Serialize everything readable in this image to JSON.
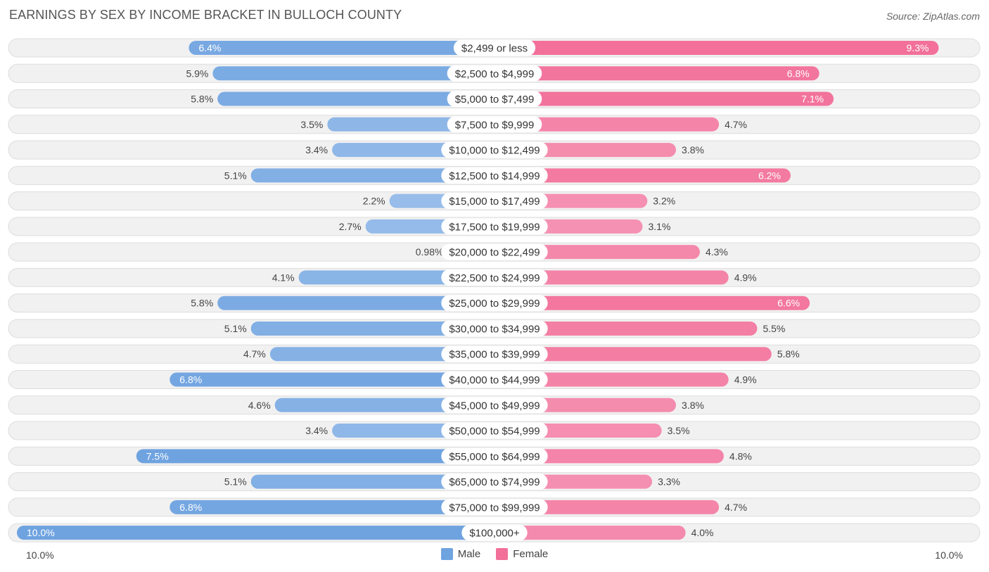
{
  "title": "EARNINGS BY SEX BY INCOME BRACKET IN BULLOCH COUNTY",
  "source": "Source: ZipAtlas.com",
  "colors": {
    "male": "#6fa3e0",
    "male_light": "#a9c8ee",
    "female": "#f2709a",
    "female_light": "#f7a8c3",
    "row_bg": "#f1f1f1",
    "row_border": "#dddddd"
  },
  "chart_data": {
    "type": "bar",
    "orientation": "horizontal-diverging",
    "title": "EARNINGS BY SEX BY INCOME BRACKET IN BULLOCH COUNTY",
    "categories": [
      "$2,499 or less",
      "$2,500 to $4,999",
      "$5,000 to $7,499",
      "$7,500 to $9,999",
      "$10,000 to $12,499",
      "$12,500 to $14,999",
      "$15,000 to $17,499",
      "$17,500 to $19,999",
      "$20,000 to $22,499",
      "$22,500 to $24,999",
      "$25,000 to $29,999",
      "$30,000 to $34,999",
      "$35,000 to $39,999",
      "$40,000 to $44,999",
      "$45,000 to $49,999",
      "$50,000 to $54,999",
      "$55,000 to $64,999",
      "$65,000 to $74,999",
      "$75,000 to $99,999",
      "$100,000+"
    ],
    "series": [
      {
        "name": "Male",
        "values": [
          6.4,
          5.9,
          5.8,
          3.5,
          3.4,
          5.1,
          2.2,
          2.7,
          0.98,
          4.1,
          5.8,
          5.1,
          4.7,
          6.8,
          4.6,
          3.4,
          7.5,
          5.1,
          6.8,
          10.0
        ],
        "labels": [
          "6.4%",
          "5.9%",
          "5.8%",
          "3.5%",
          "3.4%",
          "5.1%",
          "2.2%",
          "2.7%",
          "0.98%",
          "4.1%",
          "5.8%",
          "5.1%",
          "4.7%",
          "6.8%",
          "4.6%",
          "3.4%",
          "7.5%",
          "5.1%",
          "6.8%",
          "10.0%"
        ]
      },
      {
        "name": "Female",
        "values": [
          9.3,
          6.8,
          7.1,
          4.7,
          3.8,
          6.2,
          3.2,
          3.1,
          4.3,
          4.9,
          6.6,
          5.5,
          5.8,
          4.9,
          3.8,
          3.5,
          4.8,
          3.3,
          4.7,
          4.0
        ],
        "labels": [
          "9.3%",
          "6.8%",
          "7.1%",
          "4.7%",
          "3.8%",
          "6.2%",
          "3.2%",
          "3.1%",
          "4.3%",
          "4.9%",
          "6.6%",
          "5.5%",
          "5.8%",
          "4.9%",
          "3.8%",
          "3.5%",
          "4.8%",
          "3.3%",
          "4.7%",
          "4.0%"
        ]
      }
    ],
    "xlim": [
      -10,
      10
    ],
    "axis_left_label": "10.0%",
    "axis_right_label": "10.0%",
    "legend": [
      "Male",
      "Female"
    ],
    "legend_position": "bottom-center"
  }
}
